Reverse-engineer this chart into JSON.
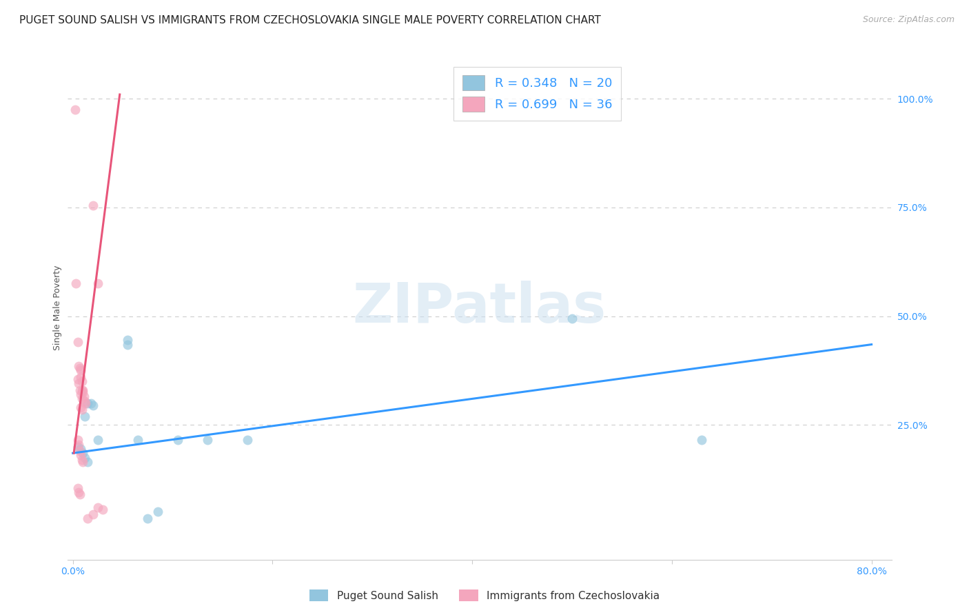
{
  "title": "PUGET SOUND SALISH VS IMMIGRANTS FROM CZECHOSLOVAKIA SINGLE MALE POVERTY CORRELATION CHART",
  "source": "Source: ZipAtlas.com",
  "ylabel": "Single Male Poverty",
  "ytick_labels": [
    "100.0%",
    "75.0%",
    "50.0%",
    "25.0%"
  ],
  "ytick_values": [
    1.0,
    0.75,
    0.5,
    0.25
  ],
  "xlim": [
    -0.005,
    0.82
  ],
  "ylim": [
    -0.06,
    1.1
  ],
  "legend_blue_label": "R = 0.348   N = 20",
  "legend_pink_label": "R = 0.699   N = 36",
  "blue_color": "#92c5de",
  "pink_color": "#f4a6bd",
  "blue_line_color": "#3399ff",
  "pink_line_color": "#e8557a",
  "watermark_text": "ZIPatlas",
  "legend_bottom": [
    "Puget Sound Salish",
    "Immigrants from Czechoslovakia"
  ],
  "blue_scatter_x": [
    0.005,
    0.008,
    0.01,
    0.012,
    0.015,
    0.012,
    0.015,
    0.018,
    0.02,
    0.025,
    0.055,
    0.055,
    0.065,
    0.105,
    0.135,
    0.175,
    0.5,
    0.63,
    0.075,
    0.085
  ],
  "blue_scatter_y": [
    0.2,
    0.195,
    0.185,
    0.175,
    0.165,
    0.27,
    0.3,
    0.3,
    0.295,
    0.215,
    0.435,
    0.445,
    0.215,
    0.215,
    0.215,
    0.215,
    0.495,
    0.215,
    0.035,
    0.05
  ],
  "pink_scatter_x": [
    0.002,
    0.003,
    0.005,
    0.006,
    0.007,
    0.008,
    0.008,
    0.009,
    0.009,
    0.01,
    0.01,
    0.011,
    0.012,
    0.013,
    0.005,
    0.006,
    0.007,
    0.008,
    0.009,
    0.01,
    0.005,
    0.006,
    0.007,
    0.005,
    0.006,
    0.007,
    0.008,
    0.009,
    0.008,
    0.009,
    0.02,
    0.025,
    0.025,
    0.03,
    0.02,
    0.015
  ],
  "pink_scatter_y": [
    0.975,
    0.575,
    0.44,
    0.385,
    0.38,
    0.36,
    0.375,
    0.35,
    0.33,
    0.33,
    0.325,
    0.315,
    0.305,
    0.3,
    0.215,
    0.205,
    0.19,
    0.18,
    0.17,
    0.165,
    0.105,
    0.095,
    0.09,
    0.355,
    0.345,
    0.33,
    0.32,
    0.31,
    0.29,
    0.285,
    0.755,
    0.575,
    0.06,
    0.055,
    0.045,
    0.035
  ],
  "blue_line_x": [
    0.0,
    0.8
  ],
  "blue_line_y": [
    0.185,
    0.435
  ],
  "pink_line_x": [
    0.001,
    0.047
  ],
  "pink_line_y": [
    0.185,
    1.01
  ],
  "bg_color": "#ffffff",
  "grid_color": "#cccccc",
  "title_fontsize": 11,
  "source_fontsize": 9,
  "axis_label_fontsize": 9,
  "tick_fontsize": 10,
  "scatter_size": 100,
  "scatter_alpha": 0.65
}
